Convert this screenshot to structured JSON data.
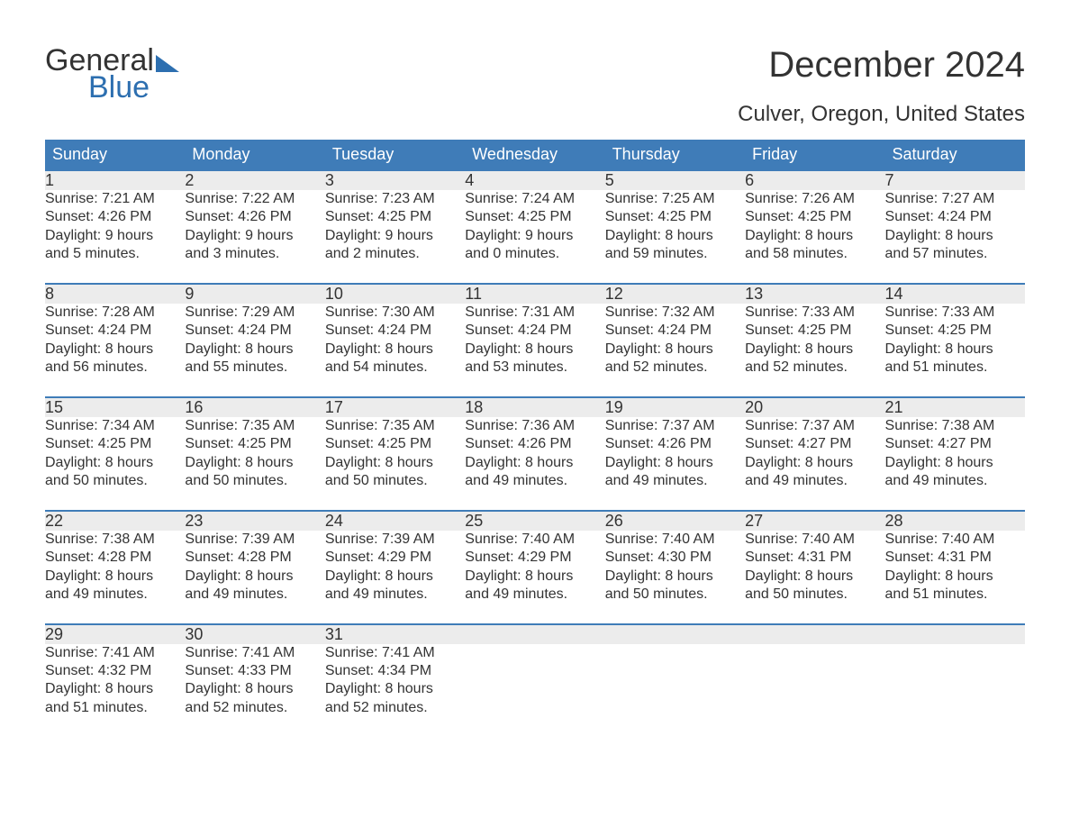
{
  "logo": {
    "word1": "General",
    "word2": "Blue"
  },
  "title": "December 2024",
  "location": "Culver, Oregon, United States",
  "colors": {
    "header_bg": "#3f7cb8",
    "header_text": "#ffffff",
    "row_bg": "#ececec",
    "row_border": "#3f7cb8",
    "body_text": "#333333",
    "logo_blue": "#2d6fb0"
  },
  "typography": {
    "title_fontsize": 40,
    "location_fontsize": 24,
    "dayname_fontsize": 18,
    "daynum_fontsize": 18,
    "detail_fontsize": 16
  },
  "day_names": [
    "Sunday",
    "Monday",
    "Tuesday",
    "Wednesday",
    "Thursday",
    "Friday",
    "Saturday"
  ],
  "weeks": [
    [
      {
        "n": "1",
        "sr": "Sunrise: 7:21 AM",
        "ss": "Sunset: 4:26 PM",
        "d1": "Daylight: 9 hours",
        "d2": "and 5 minutes."
      },
      {
        "n": "2",
        "sr": "Sunrise: 7:22 AM",
        "ss": "Sunset: 4:26 PM",
        "d1": "Daylight: 9 hours",
        "d2": "and 3 minutes."
      },
      {
        "n": "3",
        "sr": "Sunrise: 7:23 AM",
        "ss": "Sunset: 4:25 PM",
        "d1": "Daylight: 9 hours",
        "d2": "and 2 minutes."
      },
      {
        "n": "4",
        "sr": "Sunrise: 7:24 AM",
        "ss": "Sunset: 4:25 PM",
        "d1": "Daylight: 9 hours",
        "d2": "and 0 minutes."
      },
      {
        "n": "5",
        "sr": "Sunrise: 7:25 AM",
        "ss": "Sunset: 4:25 PM",
        "d1": "Daylight: 8 hours",
        "d2": "and 59 minutes."
      },
      {
        "n": "6",
        "sr": "Sunrise: 7:26 AM",
        "ss": "Sunset: 4:25 PM",
        "d1": "Daylight: 8 hours",
        "d2": "and 58 minutes."
      },
      {
        "n": "7",
        "sr": "Sunrise: 7:27 AM",
        "ss": "Sunset: 4:24 PM",
        "d1": "Daylight: 8 hours",
        "d2": "and 57 minutes."
      }
    ],
    [
      {
        "n": "8",
        "sr": "Sunrise: 7:28 AM",
        "ss": "Sunset: 4:24 PM",
        "d1": "Daylight: 8 hours",
        "d2": "and 56 minutes."
      },
      {
        "n": "9",
        "sr": "Sunrise: 7:29 AM",
        "ss": "Sunset: 4:24 PM",
        "d1": "Daylight: 8 hours",
        "d2": "and 55 minutes."
      },
      {
        "n": "10",
        "sr": "Sunrise: 7:30 AM",
        "ss": "Sunset: 4:24 PM",
        "d1": "Daylight: 8 hours",
        "d2": "and 54 minutes."
      },
      {
        "n": "11",
        "sr": "Sunrise: 7:31 AM",
        "ss": "Sunset: 4:24 PM",
        "d1": "Daylight: 8 hours",
        "d2": "and 53 minutes."
      },
      {
        "n": "12",
        "sr": "Sunrise: 7:32 AM",
        "ss": "Sunset: 4:24 PM",
        "d1": "Daylight: 8 hours",
        "d2": "and 52 minutes."
      },
      {
        "n": "13",
        "sr": "Sunrise: 7:33 AM",
        "ss": "Sunset: 4:25 PM",
        "d1": "Daylight: 8 hours",
        "d2": "and 52 minutes."
      },
      {
        "n": "14",
        "sr": "Sunrise: 7:33 AM",
        "ss": "Sunset: 4:25 PM",
        "d1": "Daylight: 8 hours",
        "d2": "and 51 minutes."
      }
    ],
    [
      {
        "n": "15",
        "sr": "Sunrise: 7:34 AM",
        "ss": "Sunset: 4:25 PM",
        "d1": "Daylight: 8 hours",
        "d2": "and 50 minutes."
      },
      {
        "n": "16",
        "sr": "Sunrise: 7:35 AM",
        "ss": "Sunset: 4:25 PM",
        "d1": "Daylight: 8 hours",
        "d2": "and 50 minutes."
      },
      {
        "n": "17",
        "sr": "Sunrise: 7:35 AM",
        "ss": "Sunset: 4:25 PM",
        "d1": "Daylight: 8 hours",
        "d2": "and 50 minutes."
      },
      {
        "n": "18",
        "sr": "Sunrise: 7:36 AM",
        "ss": "Sunset: 4:26 PM",
        "d1": "Daylight: 8 hours",
        "d2": "and 49 minutes."
      },
      {
        "n": "19",
        "sr": "Sunrise: 7:37 AM",
        "ss": "Sunset: 4:26 PM",
        "d1": "Daylight: 8 hours",
        "d2": "and 49 minutes."
      },
      {
        "n": "20",
        "sr": "Sunrise: 7:37 AM",
        "ss": "Sunset: 4:27 PM",
        "d1": "Daylight: 8 hours",
        "d2": "and 49 minutes."
      },
      {
        "n": "21",
        "sr": "Sunrise: 7:38 AM",
        "ss": "Sunset: 4:27 PM",
        "d1": "Daylight: 8 hours",
        "d2": "and 49 minutes."
      }
    ],
    [
      {
        "n": "22",
        "sr": "Sunrise: 7:38 AM",
        "ss": "Sunset: 4:28 PM",
        "d1": "Daylight: 8 hours",
        "d2": "and 49 minutes."
      },
      {
        "n": "23",
        "sr": "Sunrise: 7:39 AM",
        "ss": "Sunset: 4:28 PM",
        "d1": "Daylight: 8 hours",
        "d2": "and 49 minutes."
      },
      {
        "n": "24",
        "sr": "Sunrise: 7:39 AM",
        "ss": "Sunset: 4:29 PM",
        "d1": "Daylight: 8 hours",
        "d2": "and 49 minutes."
      },
      {
        "n": "25",
        "sr": "Sunrise: 7:40 AM",
        "ss": "Sunset: 4:29 PM",
        "d1": "Daylight: 8 hours",
        "d2": "and 49 minutes."
      },
      {
        "n": "26",
        "sr": "Sunrise: 7:40 AM",
        "ss": "Sunset: 4:30 PM",
        "d1": "Daylight: 8 hours",
        "d2": "and 50 minutes."
      },
      {
        "n": "27",
        "sr": "Sunrise: 7:40 AM",
        "ss": "Sunset: 4:31 PM",
        "d1": "Daylight: 8 hours",
        "d2": "and 50 minutes."
      },
      {
        "n": "28",
        "sr": "Sunrise: 7:40 AM",
        "ss": "Sunset: 4:31 PM",
        "d1": "Daylight: 8 hours",
        "d2": "and 51 minutes."
      }
    ],
    [
      {
        "n": "29",
        "sr": "Sunrise: 7:41 AM",
        "ss": "Sunset: 4:32 PM",
        "d1": "Daylight: 8 hours",
        "d2": "and 51 minutes."
      },
      {
        "n": "30",
        "sr": "Sunrise: 7:41 AM",
        "ss": "Sunset: 4:33 PM",
        "d1": "Daylight: 8 hours",
        "d2": "and 52 minutes."
      },
      {
        "n": "31",
        "sr": "Sunrise: 7:41 AM",
        "ss": "Sunset: 4:34 PM",
        "d1": "Daylight: 8 hours",
        "d2": "and 52 minutes."
      },
      null,
      null,
      null,
      null
    ]
  ]
}
